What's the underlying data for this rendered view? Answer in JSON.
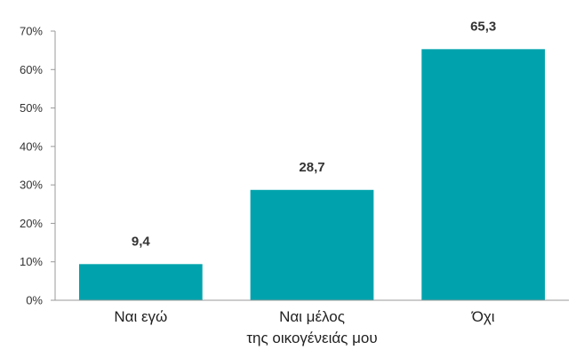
{
  "chart_data": {
    "type": "bar",
    "categories": [
      [
        "Ναι εγώ"
      ],
      [
        "Ναι μέλος",
        "της οικογένειάς μου"
      ],
      [
        "Όχι"
      ]
    ],
    "values": [
      9.4,
      28.7,
      65.3
    ],
    "data_labels": [
      "9,4",
      "28,7",
      "65,3"
    ],
    "y_ticks": [
      0,
      10,
      20,
      30,
      40,
      50,
      60,
      70
    ],
    "y_tick_labels": [
      "0%",
      "10%",
      "20%",
      "30%",
      "40%",
      "50%",
      "60%",
      "70%"
    ],
    "ylim": [
      0,
      70
    ],
    "grid": false,
    "bar_color": "#00a3ad",
    "axis_color": "#999999"
  }
}
